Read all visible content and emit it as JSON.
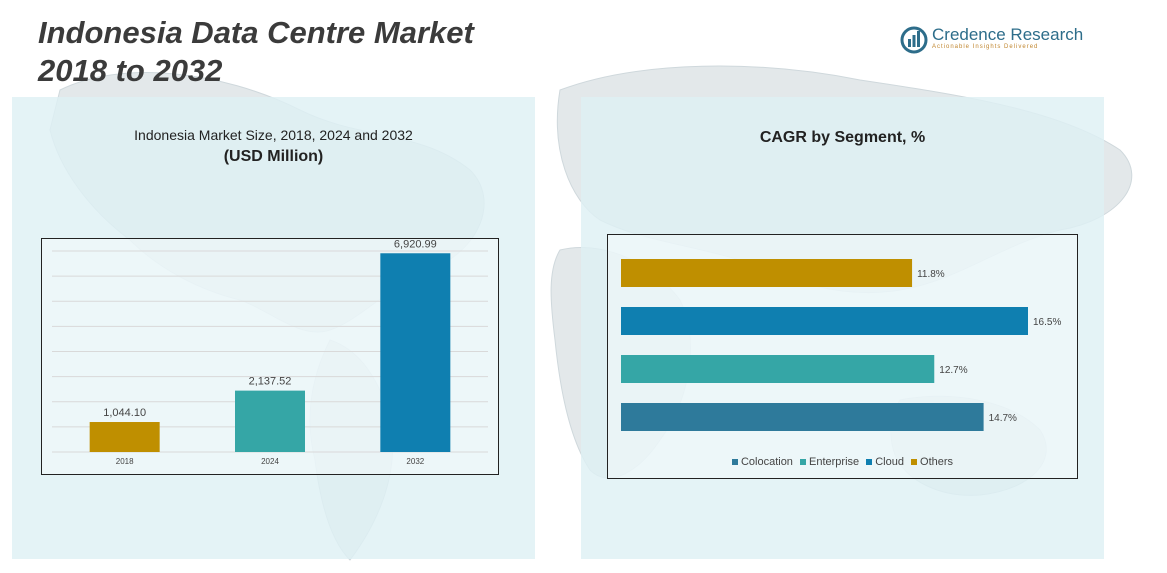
{
  "header": {
    "title_line1": "Indonesia Data Centre Market",
    "title_line2": "2018 to 2032"
  },
  "logo": {
    "name": "Credence Research",
    "tagline": "Actionable Insights Delivered",
    "icon": "bar-chart-circle-icon",
    "color": "#2d6d8a",
    "tag_color": "#c0862f"
  },
  "left_panel": {
    "subtitle": "Indonesia Market Size, 2018, 2024 and 2032",
    "unit": "(USD Million)"
  },
  "right_panel": {
    "subtitle": "CAGR by Segment, %"
  },
  "chart_data": [
    {
      "type": "bar",
      "categories": [
        "2018",
        "2024",
        "2032"
      ],
      "values": [
        1044.1,
        2137.52,
        6920.99
      ],
      "value_labels": [
        "1,044.10",
        "2,137.52",
        "6,920.99"
      ],
      "colors": [
        "#bf8f00",
        "#35a6a6",
        "#0f7fb0"
      ],
      "title": "Indonesia Market Size, 2018, 2024 and 2032",
      "ylabel": "(USD Million)",
      "ylim": [
        0,
        7000
      ],
      "grid": true
    },
    {
      "type": "bar",
      "orientation": "horizontal",
      "categories": [
        "Others",
        "Cloud",
        "Enterprise",
        "Colocation"
      ],
      "values": [
        11.8,
        16.5,
        12.7,
        14.7
      ],
      "value_labels": [
        "11.8%",
        "16.5%",
        "12.7%",
        "14.7%"
      ],
      "colors": [
        "#bf8f00",
        "#0f7fb0",
        "#35a6a6",
        "#2e7a9b"
      ],
      "title": "CAGR by Segment, %",
      "xlim": [
        0,
        16.5
      ],
      "legend": {
        "placement": "bottom",
        "entries": [
          {
            "label": "Colocation",
            "color": "#2e7a9b"
          },
          {
            "label": "Enterprise",
            "color": "#35a6a6"
          },
          {
            "label": "Cloud",
            "color": "#0f7fb0"
          },
          {
            "label": "Others",
            "color": "#bf8f00"
          }
        ]
      }
    }
  ]
}
